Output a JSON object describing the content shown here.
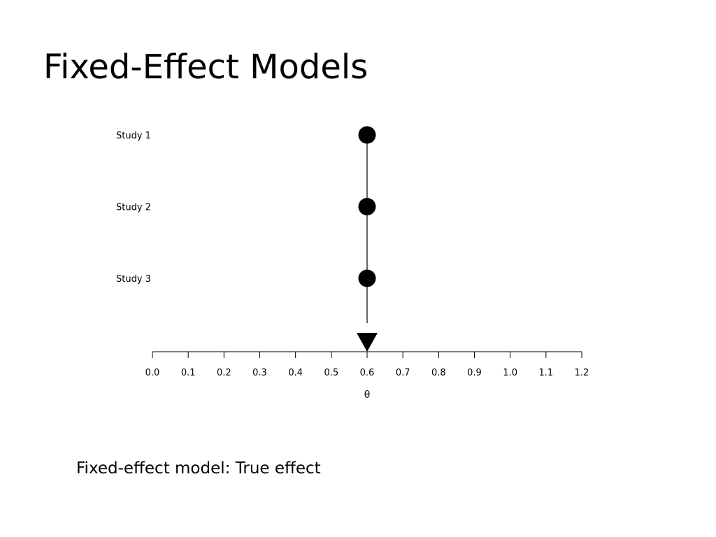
{
  "slide": {
    "title": "Fixed-Effect Models",
    "caption": "Fixed-effect model: True effect"
  },
  "chart_data": {
    "type": "scatter",
    "title": "",
    "xlabel": "θ",
    "ylabel": "",
    "xlim": [
      0.0,
      1.2
    ],
    "x_ticks": [
      "0.0",
      "0.1",
      "0.2",
      "0.3",
      "0.4",
      "0.5",
      "0.6",
      "0.7",
      "0.8",
      "0.9",
      "1.0",
      "1.1",
      "1.2"
    ],
    "grid": false,
    "legend": "none",
    "studies": [
      {
        "label": "Study 1",
        "x": 0.6
      },
      {
        "label": "Study 2",
        "x": 0.6
      },
      {
        "label": "Study 3",
        "x": 0.6
      }
    ],
    "true_effect": 0.6,
    "colors": {
      "marker": "#000000",
      "axis": "#000000"
    }
  }
}
